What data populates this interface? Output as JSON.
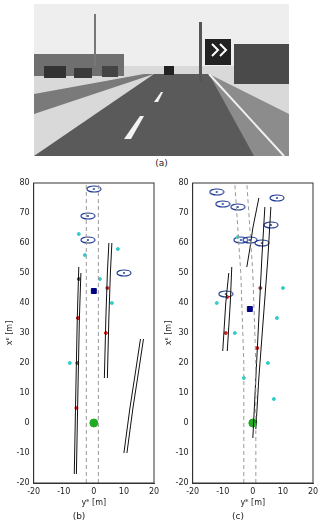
{
  "image": {
    "caption": "(a)"
  },
  "chart_data": [
    {
      "type": "scatter",
      "title": "(b)",
      "x_label": "yᴱ [m]",
      "y_label": "xᴱ [m]",
      "xlim": [
        -20,
        20
      ],
      "xticks": [
        -20,
        -10,
        0,
        10,
        20
      ],
      "ylim": [
        -20,
        80
      ],
      "yticks": [
        -20,
        -10,
        0,
        10,
        20,
        30,
        40,
        50,
        60,
        70,
        80
      ],
      "grid": false,
      "series": [
        {
          "type": "line",
          "color": "#9a9a9a",
          "line_style": "dashed",
          "x": [
            -2.5,
            -2.5
          ],
          "values": [
            -20,
            80
          ]
        },
        {
          "type": "line",
          "color": "#9a9a9a",
          "line_style": "dashed",
          "x": [
            1.5,
            1.5
          ],
          "values": [
            -20,
            80
          ]
        },
        {
          "type": "line",
          "color": "#111111",
          "line_style": "solid",
          "x": [
            -6.5,
            -6,
            -5.5,
            -5
          ],
          "values": [
            -17,
            10,
            35,
            52
          ]
        },
        {
          "type": "line",
          "color": "#111111",
          "line_style": "solid",
          "x": [
            -5.8,
            -5.3,
            -4.8,
            -4.3
          ],
          "values": [
            -17,
            10,
            35,
            50
          ]
        },
        {
          "type": "line",
          "color": "#111111",
          "line_style": "solid",
          "x": [
            3.5,
            4,
            4.5,
            5
          ],
          "values": [
            15,
            35,
            50,
            60
          ]
        },
        {
          "type": "line",
          "color": "#111111",
          "line_style": "solid",
          "x": [
            4.5,
            5,
            5.5,
            6
          ],
          "values": [
            15,
            35,
            50,
            60
          ]
        },
        {
          "type": "line",
          "color": "#111111",
          "line_style": "solid",
          "x": [
            10,
            12,
            14,
            15.5
          ],
          "values": [
            -10,
            5,
            18,
            28
          ]
        },
        {
          "type": "line",
          "color": "#111111",
          "line_style": "solid",
          "x": [
            11,
            13,
            15,
            16.5
          ],
          "values": [
            -10,
            5,
            18,
            28
          ]
        },
        {
          "type": "scatter",
          "color": "#cc2222",
          "marker": "dot",
          "x": [
            -5.8,
            -5.5,
            -5.3,
            -5,
            4,
            4.5
          ],
          "values": [
            5,
            20,
            35,
            48,
            30,
            45
          ]
        },
        {
          "type": "scatter",
          "color": "#33cccc",
          "marker": "dot",
          "x": [
            -5,
            -3,
            6,
            8,
            -8,
            2
          ],
          "values": [
            63,
            56,
            40,
            58,
            20,
            48
          ]
        },
        {
          "type": "scatter",
          "color": "#1f3a93",
          "marker": "ellipse",
          "x": [
            0,
            -2,
            -2,
            10
          ],
          "values": [
            78,
            69,
            61,
            50
          ]
        },
        {
          "type": "scatter",
          "color": "#000080",
          "marker": "square",
          "x": [
            0
          ],
          "values": [
            44
          ]
        },
        {
          "type": "scatter",
          "color": "#22aa22",
          "marker": "circle",
          "x": [
            0
          ],
          "values": [
            0
          ]
        }
      ]
    },
    {
      "type": "scatter",
      "title": "(c)",
      "x_label": "yᴱ [m]",
      "y_label": "xᴱ [m]",
      "xlim": [
        -20,
        20
      ],
      "xticks": [
        -20,
        -10,
        0,
        10,
        20
      ],
      "ylim": [
        -20,
        80
      ],
      "yticks": [
        -20,
        -10,
        0,
        10,
        20,
        30,
        40,
        50,
        60,
        70,
        80
      ],
      "grid": false,
      "series": [
        {
          "type": "line",
          "color": "#9a9a9a",
          "line_style": "dashed",
          "x": [
            -3,
            -3,
            -4,
            -6
          ],
          "values": [
            -20,
            20,
            50,
            80
          ]
        },
        {
          "type": "line",
          "color": "#9a9a9a",
          "line_style": "dashed",
          "x": [
            1,
            1,
            0,
            -2
          ],
          "values": [
            -20,
            20,
            50,
            80
          ]
        },
        {
          "type": "line",
          "color": "#111111",
          "line_style": "solid",
          "x": [
            -10,
            -9,
            -8
          ],
          "values": [
            24,
            40,
            50
          ]
        },
        {
          "type": "line",
          "color": "#111111",
          "line_style": "solid",
          "x": [
            -8.5,
            -7.5,
            -7
          ],
          "values": [
            24,
            40,
            52
          ]
        },
        {
          "type": "line",
          "color": "#111111",
          "line_style": "solid",
          "x": [
            0,
            1,
            2,
            3,
            4
          ],
          "values": [
            -5,
            15,
            35,
            55,
            72
          ]
        },
        {
          "type": "line",
          "color": "#111111",
          "line_style": "solid",
          "x": [
            1,
            2,
            3.5,
            5,
            6
          ],
          "values": [
            -2,
            15,
            35,
            55,
            72
          ]
        },
        {
          "type": "line",
          "color": "#111111",
          "line_style": "solid",
          "x": [
            -2,
            -1,
            0,
            2
          ],
          "values": [
            52,
            58,
            65,
            75
          ]
        },
        {
          "type": "scatter",
          "color": "#cc2222",
          "marker": "dot",
          "x": [
            -9,
            -8.5,
            1.5,
            2.5
          ],
          "values": [
            30,
            42,
            25,
            45
          ]
        },
        {
          "type": "scatter",
          "color": "#33cccc",
          "marker": "dot",
          "x": [
            -12,
            -6,
            -3,
            5,
            8,
            10,
            -5,
            7
          ],
          "values": [
            40,
            30,
            15,
            20,
            35,
            45,
            62,
            8
          ]
        },
        {
          "type": "scatter",
          "color": "#1f3a93",
          "marker": "ellipse",
          "x": [
            -12,
            -10,
            -5,
            -4,
            -1,
            3,
            8,
            6,
            -9
          ],
          "values": [
            77,
            73,
            72,
            61,
            61,
            60,
            75,
            66,
            43
          ]
        },
        {
          "type": "scatter",
          "color": "#000080",
          "marker": "square",
          "x": [
            -1
          ],
          "values": [
            38
          ]
        },
        {
          "type": "scatter",
          "color": "#22aa22",
          "marker": "circle",
          "x": [
            0
          ],
          "values": [
            0
          ]
        }
      ]
    }
  ]
}
